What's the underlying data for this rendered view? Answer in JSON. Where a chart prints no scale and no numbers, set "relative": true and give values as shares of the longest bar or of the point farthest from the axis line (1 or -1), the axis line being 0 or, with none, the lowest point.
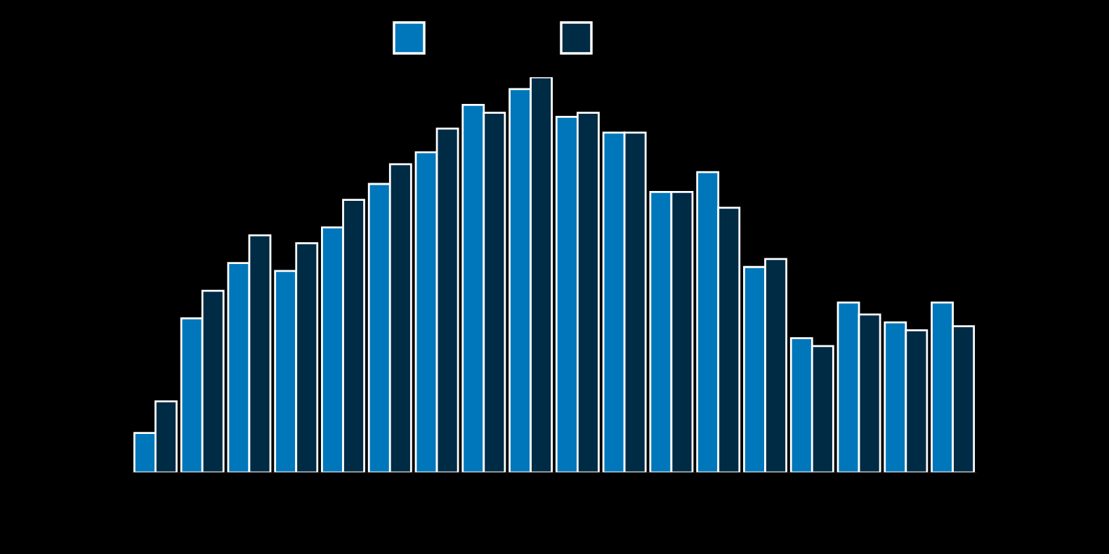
{
  "chart_data": {
    "type": "bar",
    "relative": true,
    "grid": false,
    "categories": [
      null,
      null,
      null,
      null,
      null,
      null,
      null,
      null,
      null,
      null,
      null,
      null,
      null,
      null,
      null,
      null,
      null,
      null
    ],
    "series": [
      {
        "color": "#0077bb",
        "values": [
          0.1,
          0.39,
          0.53,
          0.51,
          0.62,
          0.73,
          0.81,
          0.93,
          0.97,
          0.9,
          0.86,
          0.71,
          0.76,
          0.52,
          0.34,
          0.43,
          0.38,
          0.43
        ]
      },
      {
        "color": "#002b45",
        "values": [
          0.18,
          0.46,
          0.6,
          0.58,
          0.69,
          0.78,
          0.87,
          0.91,
          1,
          0.91,
          0.86,
          0.71,
          0.67,
          0.54,
          0.32,
          0.4,
          0.36,
          0.37
        ]
      }
    ]
  }
}
